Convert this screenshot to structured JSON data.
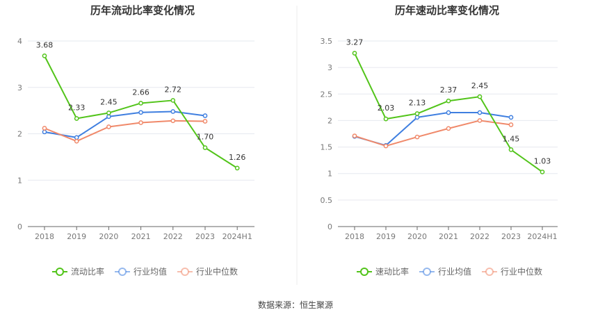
{
  "colors": {
    "primary": "#52c41a",
    "industry_avg": "#3f7fe0",
    "industry_median": "#f0896a",
    "grid": "#e6e8ef",
    "axis": "#666666",
    "divider": "#eeeeee"
  },
  "source": "数据来源：恒生聚源",
  "chart_data": [
    {
      "type": "line",
      "title": "历年流动比率变化情况",
      "categories": [
        "2018",
        "2019",
        "2020",
        "2021",
        "2022",
        "2023",
        "2024H1"
      ],
      "ylim": [
        0,
        4
      ],
      "yticks": [
        0,
        1,
        2,
        3,
        4
      ],
      "ytick_labels": [
        "0",
        "1",
        "2",
        "3",
        "4"
      ],
      "grid": true,
      "legend": "bottom",
      "series": [
        {
          "name": "流动比率",
          "values": [
            3.68,
            2.33,
            2.45,
            2.66,
            2.72,
            1.7,
            1.26
          ],
          "labels": [
            "3.68",
            "2.33",
            "2.45",
            "2.66",
            "2.72",
            "1.70",
            "1.26"
          ],
          "color_key": "primary"
        },
        {
          "name": "行业均值",
          "values": [
            2.04,
            1.92,
            2.37,
            2.46,
            2.48,
            2.39,
            null
          ],
          "color_key": "industry_avg"
        },
        {
          "name": "行业中位数",
          "values": [
            2.12,
            1.84,
            2.15,
            2.24,
            2.28,
            2.27,
            null
          ],
          "color_key": "industry_median"
        }
      ]
    },
    {
      "type": "line",
      "title": "历年速动比率变化情况",
      "categories": [
        "2018",
        "2019",
        "2020",
        "2021",
        "2022",
        "2023",
        "2024H1"
      ],
      "ylim": [
        0,
        3.5
      ],
      "yticks": [
        0,
        0.5,
        1,
        1.5,
        2,
        2.5,
        3,
        3.5
      ],
      "ytick_labels": [
        "0",
        "0.5",
        "1",
        "1.5",
        "2",
        "2.5",
        "3",
        "3.5"
      ],
      "grid": true,
      "legend": "bottom",
      "series": [
        {
          "name": "速动比率",
          "values": [
            3.27,
            2.03,
            2.13,
            2.37,
            2.45,
            1.45,
            1.03
          ],
          "labels": [
            "3.27",
            "2.03",
            "2.13",
            "2.37",
            "2.45",
            "1.45",
            "1.03"
          ],
          "color_key": "primary"
        },
        {
          "name": "行业均值",
          "values": [
            1.7,
            1.53,
            2.06,
            2.15,
            2.15,
            2.06,
            null
          ],
          "color_key": "industry_avg"
        },
        {
          "name": "行业中位数",
          "values": [
            1.71,
            1.52,
            1.69,
            1.85,
            2.0,
            1.92,
            null
          ],
          "color_key": "industry_median"
        }
      ]
    }
  ]
}
